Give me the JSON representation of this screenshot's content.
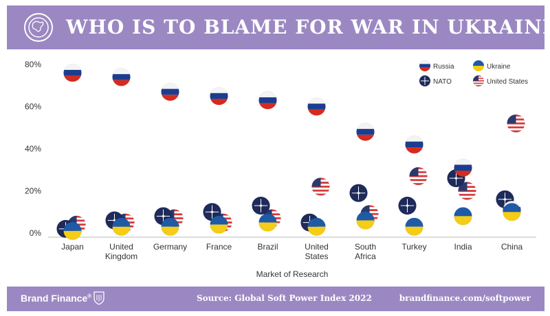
{
  "header": {
    "title": "WHO IS TO BLAME FOR WAR IN UKRAINE?",
    "icon": "globe-icon"
  },
  "footer": {
    "brand": "Brand Finance",
    "brand_mark": "®",
    "source": "Source: Global Soft Power Index 2022",
    "url": "brandfinance.com/softpower"
  },
  "colors": {
    "header_bg": "#9b88c2",
    "russia_red": "#d52b1e",
    "russia_blue": "#1c3d8f",
    "ukraine_blue": "#1f5aa6",
    "ukraine_yellow": "#f5cc16",
    "nato_navy": "#1e2a5a",
    "us_red": "#d63a3a",
    "us_blue": "#2a3a6e"
  },
  "chart_data": {
    "type": "scatter",
    "xlabel": "Market of Research",
    "ylabel": "",
    "ylim": [
      0,
      80
    ],
    "yticks": [
      "0%",
      "20%",
      "40%",
      "60%",
      "80%"
    ],
    "grid": false,
    "legend_position": "top-right",
    "categories": [
      [
        "Japan"
      ],
      [
        "United",
        "Kingdom"
      ],
      [
        "Germany"
      ],
      [
        "France"
      ],
      [
        "Brazil"
      ],
      [
        "United",
        "States"
      ],
      [
        "South",
        "Africa"
      ],
      [
        "Turkey"
      ],
      [
        "India"
      ],
      [
        "China"
      ]
    ],
    "series": [
      {
        "name": "Russia",
        "key": "russia",
        "values": [
          76,
          74,
          67,
          65,
          63,
          60,
          48,
          42,
          31,
          11
        ]
      },
      {
        "name": "Ukraine",
        "key": "ukraine",
        "values": [
          1,
          3,
          3,
          4,
          5,
          3,
          6,
          3,
          8,
          10
        ]
      },
      {
        "name": "NATO",
        "key": "nato",
        "values": [
          2,
          6,
          8,
          10,
          13,
          5,
          19,
          13,
          26,
          16
        ]
      },
      {
        "name": "United States",
        "key": "us",
        "values": [
          4,
          5,
          7,
          5,
          7,
          22,
          9,
          27,
          20,
          52
        ]
      }
    ]
  }
}
